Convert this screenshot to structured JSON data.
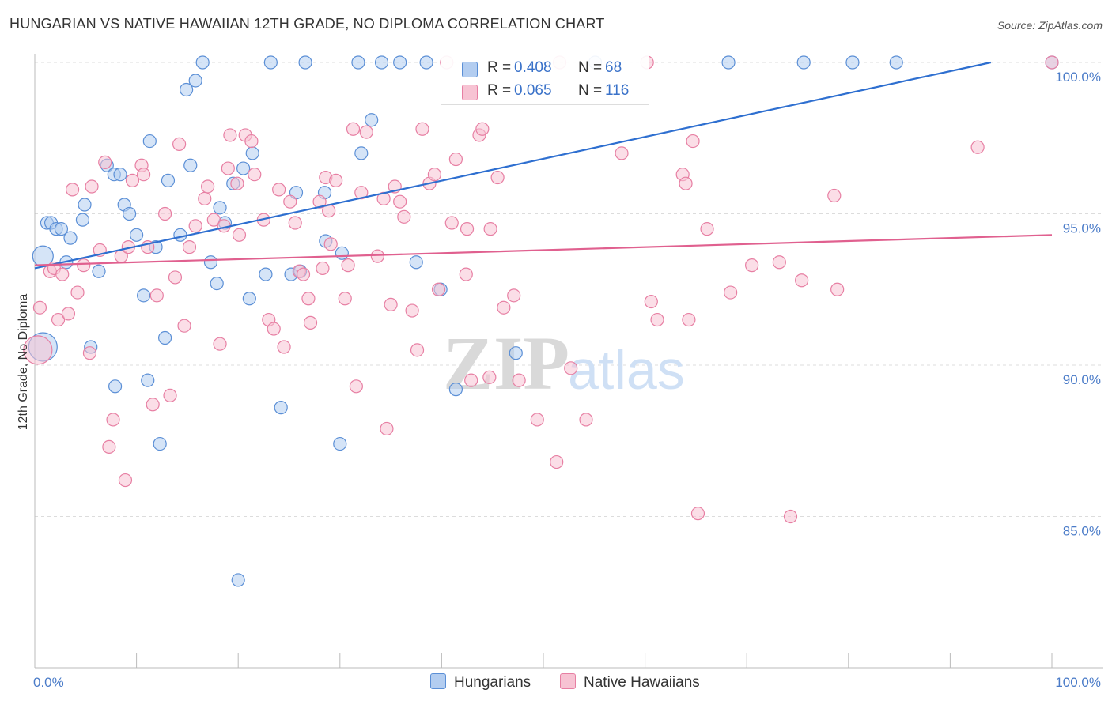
{
  "title": "HUNGARIAN VS NATIVE HAWAIIAN 12TH GRADE, NO DIPLOMA CORRELATION CHART",
  "source": "Source: ZipAtlas.com",
  "watermark": {
    "zip": "ZIP",
    "atlas": "atlas"
  },
  "legend": {
    "hungarians": {
      "r_label": "R = ",
      "r_value": "0.408",
      "n_label": "N = ",
      "n_value": "68"
    },
    "hawaiians": {
      "r_label": "R = ",
      "r_value": "0.065",
      "n_label": "N = ",
      "n_value": "116"
    }
  },
  "bottom_legend": {
    "hungarians": "Hungarians",
    "hawaiians": "Native Hawaiians"
  },
  "colors": {
    "blue": "#5b8fd6",
    "blue_fill": "#b3cdf0",
    "pink": "#e77fa3",
    "pink_fill": "#f7c3d3",
    "blue_line": "#2e6fd0",
    "pink_line": "#e0608f"
  },
  "chart_data": {
    "type": "scatter",
    "ylabel": "12th Grade, No Diploma",
    "xlabel": "",
    "x_tick_labels": [
      "0.0%",
      "100.0%"
    ],
    "y_tick_labels": [
      "100.0%",
      "95.0%",
      "90.0%",
      "85.0%"
    ],
    "y_ticks": [
      100,
      95,
      90,
      85
    ],
    "xlim": [
      0,
      100
    ],
    "ylim": [
      80.4,
      100.8
    ],
    "grid": true,
    "legend_position": "top-center",
    "series": [
      {
        "name": "Hungarians",
        "color": "#5b8fd6",
        "trend": {
          "x": [
            0,
            94
          ],
          "y": [
            93.2,
            100.0
          ]
        },
        "points": [
          [
            0.8,
            93.6,
            13
          ],
          [
            0.8,
            90.6,
            18
          ],
          [
            1.2,
            94.7,
            8
          ],
          [
            1.6,
            94.7,
            8
          ],
          [
            2.1,
            94.5,
            8
          ],
          [
            2.6,
            94.5,
            8
          ],
          [
            3.1,
            93.4,
            8
          ],
          [
            3.5,
            94.2,
            8
          ],
          [
            4.7,
            94.8,
            8
          ],
          [
            4.9,
            95.3,
            8
          ],
          [
            5.5,
            90.6,
            8
          ],
          [
            6.3,
            93.1,
            8
          ],
          [
            7.1,
            96.6,
            8
          ],
          [
            7.8,
            96.3,
            8
          ],
          [
            7.9,
            89.3,
            8
          ],
          [
            8.4,
            96.3,
            8
          ],
          [
            8.8,
            95.3,
            8
          ],
          [
            9.3,
            95.0,
            8
          ],
          [
            10.0,
            94.3,
            8
          ],
          [
            10.7,
            92.3,
            8
          ],
          [
            11.1,
            89.5,
            8
          ],
          [
            11.3,
            97.4,
            8
          ],
          [
            11.9,
            93.9,
            8
          ],
          [
            12.3,
            87.4,
            8
          ],
          [
            12.8,
            90.9,
            8
          ],
          [
            13.1,
            96.1,
            8
          ],
          [
            14.3,
            94.3,
            8
          ],
          [
            14.9,
            99.1,
            8
          ],
          [
            15.3,
            96.6,
            8
          ],
          [
            15.8,
            99.4,
            8
          ],
          [
            16.5,
            100.0,
            8
          ],
          [
            17.3,
            93.4,
            8
          ],
          [
            17.9,
            92.7,
            8
          ],
          [
            18.2,
            95.2,
            8
          ],
          [
            18.7,
            94.7,
            8
          ],
          [
            19.5,
            96.0,
            8
          ],
          [
            20.0,
            82.9,
            8
          ],
          [
            20.5,
            96.5,
            8
          ],
          [
            21.1,
            92.2,
            8
          ],
          [
            21.4,
            97.0,
            8
          ],
          [
            22.7,
            93.0,
            8
          ],
          [
            23.2,
            100.0,
            8
          ],
          [
            24.2,
            88.6,
            8
          ],
          [
            25.2,
            93.0,
            8
          ],
          [
            25.7,
            95.7,
            8
          ],
          [
            26.1,
            93.1,
            8
          ],
          [
            26.6,
            100.0,
            8
          ],
          [
            28.5,
            95.7,
            8
          ],
          [
            28.6,
            94.1,
            8
          ],
          [
            30.0,
            87.4,
            8
          ],
          [
            30.2,
            93.7,
            8
          ],
          [
            31.8,
            100.0,
            8
          ],
          [
            32.1,
            97.0,
            8
          ],
          [
            33.1,
            98.1,
            8
          ],
          [
            34.1,
            100.0,
            8
          ],
          [
            35.9,
            100.0,
            8
          ],
          [
            37.5,
            93.4,
            8
          ],
          [
            38.5,
            100.0,
            8
          ],
          [
            39.9,
            92.5,
            8
          ],
          [
            41.4,
            89.2,
            8
          ],
          [
            47.3,
            90.4,
            8
          ],
          [
            55.1,
            100.0,
            8
          ],
          [
            68.2,
            100.0,
            8
          ],
          [
            75.6,
            100.0,
            8
          ],
          [
            80.4,
            100.0,
            8
          ],
          [
            84.7,
            100.0,
            8
          ],
          [
            100.0,
            100.0,
            8
          ]
        ]
      },
      {
        "name": "Native Hawaiians",
        "color": "#e77fa3",
        "trend": {
          "x": [
            0,
            100
          ],
          "y": [
            93.3,
            94.3
          ]
        },
        "points": [
          [
            0.3,
            90.5,
            18
          ],
          [
            0.5,
            91.9,
            8
          ],
          [
            1.5,
            93.1,
            8
          ],
          [
            1.9,
            93.2,
            8
          ],
          [
            2.3,
            91.5,
            8
          ],
          [
            2.7,
            93.0,
            8
          ],
          [
            3.3,
            91.7,
            8
          ],
          [
            3.7,
            95.8,
            8
          ],
          [
            4.2,
            92.4,
            8
          ],
          [
            4.8,
            93.3,
            8
          ],
          [
            5.4,
            90.4,
            8
          ],
          [
            5.6,
            95.9,
            8
          ],
          [
            6.4,
            93.8,
            8
          ],
          [
            6.9,
            96.7,
            8
          ],
          [
            7.3,
            87.3,
            8
          ],
          [
            7.7,
            88.2,
            8
          ],
          [
            8.5,
            93.6,
            8
          ],
          [
            8.9,
            86.2,
            8
          ],
          [
            9.2,
            93.9,
            8
          ],
          [
            9.6,
            96.1,
            8
          ],
          [
            10.5,
            96.6,
            8
          ],
          [
            10.7,
            96.3,
            8
          ],
          [
            11.1,
            93.9,
            8
          ],
          [
            11.6,
            88.7,
            8
          ],
          [
            12.0,
            92.3,
            8
          ],
          [
            12.8,
            95.0,
            8
          ],
          [
            13.3,
            89.0,
            8
          ],
          [
            13.8,
            92.9,
            8
          ],
          [
            14.2,
            97.3,
            8
          ],
          [
            14.7,
            91.3,
            8
          ],
          [
            15.2,
            93.9,
            8
          ],
          [
            15.8,
            94.6,
            8
          ],
          [
            16.7,
            95.5,
            8
          ],
          [
            17.0,
            95.9,
            8
          ],
          [
            17.6,
            94.8,
            8
          ],
          [
            18.2,
            90.7,
            8
          ],
          [
            18.6,
            94.6,
            8
          ],
          [
            19.0,
            96.5,
            8
          ],
          [
            19.2,
            97.6,
            8
          ],
          [
            19.9,
            96.0,
            8
          ],
          [
            20.1,
            94.3,
            8
          ],
          [
            20.7,
            97.6,
            8
          ],
          [
            21.3,
            97.4,
            8
          ],
          [
            21.6,
            96.3,
            8
          ],
          [
            22.5,
            94.8,
            8
          ],
          [
            23.0,
            91.5,
            8
          ],
          [
            23.5,
            91.2,
            8
          ],
          [
            24.0,
            95.8,
            8
          ],
          [
            24.5,
            90.6,
            8
          ],
          [
            25.1,
            95.4,
            8
          ],
          [
            25.6,
            94.7,
            8
          ],
          [
            26.0,
            93.1,
            8
          ],
          [
            26.4,
            93.0,
            8
          ],
          [
            26.9,
            92.2,
            8
          ],
          [
            27.1,
            91.4,
            8
          ],
          [
            28.0,
            95.4,
            8
          ],
          [
            28.3,
            93.2,
            8
          ],
          [
            28.6,
            96.2,
            8
          ],
          [
            28.9,
            95.1,
            8
          ],
          [
            29.1,
            94.0,
            8
          ],
          [
            29.6,
            96.1,
            8
          ],
          [
            30.5,
            92.2,
            8
          ],
          [
            30.8,
            93.3,
            8
          ],
          [
            31.3,
            97.8,
            8
          ],
          [
            31.6,
            89.3,
            8
          ],
          [
            32.1,
            95.7,
            8
          ],
          [
            32.6,
            97.7,
            8
          ],
          [
            33.7,
            93.6,
            8
          ],
          [
            34.3,
            95.5,
            8
          ],
          [
            34.6,
            87.9,
            8
          ],
          [
            35.0,
            92.0,
            8
          ],
          [
            35.4,
            95.9,
            8
          ],
          [
            35.9,
            95.4,
            8
          ],
          [
            36.3,
            94.9,
            8
          ],
          [
            37.1,
            91.8,
            8
          ],
          [
            37.6,
            90.5,
            8
          ],
          [
            38.1,
            97.8,
            8
          ],
          [
            38.8,
            96.0,
            8
          ],
          [
            39.3,
            96.3,
            8
          ],
          [
            39.7,
            92.5,
            8
          ],
          [
            40.5,
            100.0,
            8
          ],
          [
            41.0,
            94.7,
            8
          ],
          [
            41.4,
            96.8,
            8
          ],
          [
            42.4,
            93.0,
            8
          ],
          [
            42.5,
            94.5,
            8
          ],
          [
            42.9,
            89.5,
            8
          ],
          [
            43.7,
            97.6,
            8
          ],
          [
            44.0,
            97.8,
            8
          ],
          [
            44.7,
            89.6,
            8
          ],
          [
            44.8,
            94.5,
            8
          ],
          [
            45.5,
            96.2,
            8
          ],
          [
            46.1,
            91.9,
            8
          ],
          [
            47.1,
            92.3,
            8
          ],
          [
            47.6,
            89.5,
            8
          ],
          [
            49.4,
            88.2,
            8
          ],
          [
            51.3,
            86.8,
            8
          ],
          [
            51.6,
            100.0,
            8
          ],
          [
            52.7,
            89.9,
            8
          ],
          [
            54.2,
            88.2,
            8
          ],
          [
            57.7,
            97.0,
            8
          ],
          [
            60.2,
            100.0,
            8
          ],
          [
            60.6,
            92.1,
            8
          ],
          [
            61.2,
            91.5,
            8
          ],
          [
            63.7,
            96.3,
            8
          ],
          [
            64.0,
            96.0,
            8
          ],
          [
            64.3,
            91.5,
            8
          ],
          [
            64.7,
            97.4,
            8
          ],
          [
            65.2,
            85.1,
            8
          ],
          [
            66.1,
            94.5,
            8
          ],
          [
            68.4,
            92.4,
            8
          ],
          [
            70.5,
            93.3,
            8
          ],
          [
            73.2,
            93.4,
            8
          ],
          [
            74.3,
            85.0,
            8
          ],
          [
            75.4,
            92.8,
            8
          ],
          [
            78.6,
            95.6,
            8
          ],
          [
            78.9,
            92.5,
            8
          ],
          [
            92.7,
            97.2,
            8
          ],
          [
            100.0,
            100.0,
            8
          ]
        ]
      }
    ]
  }
}
